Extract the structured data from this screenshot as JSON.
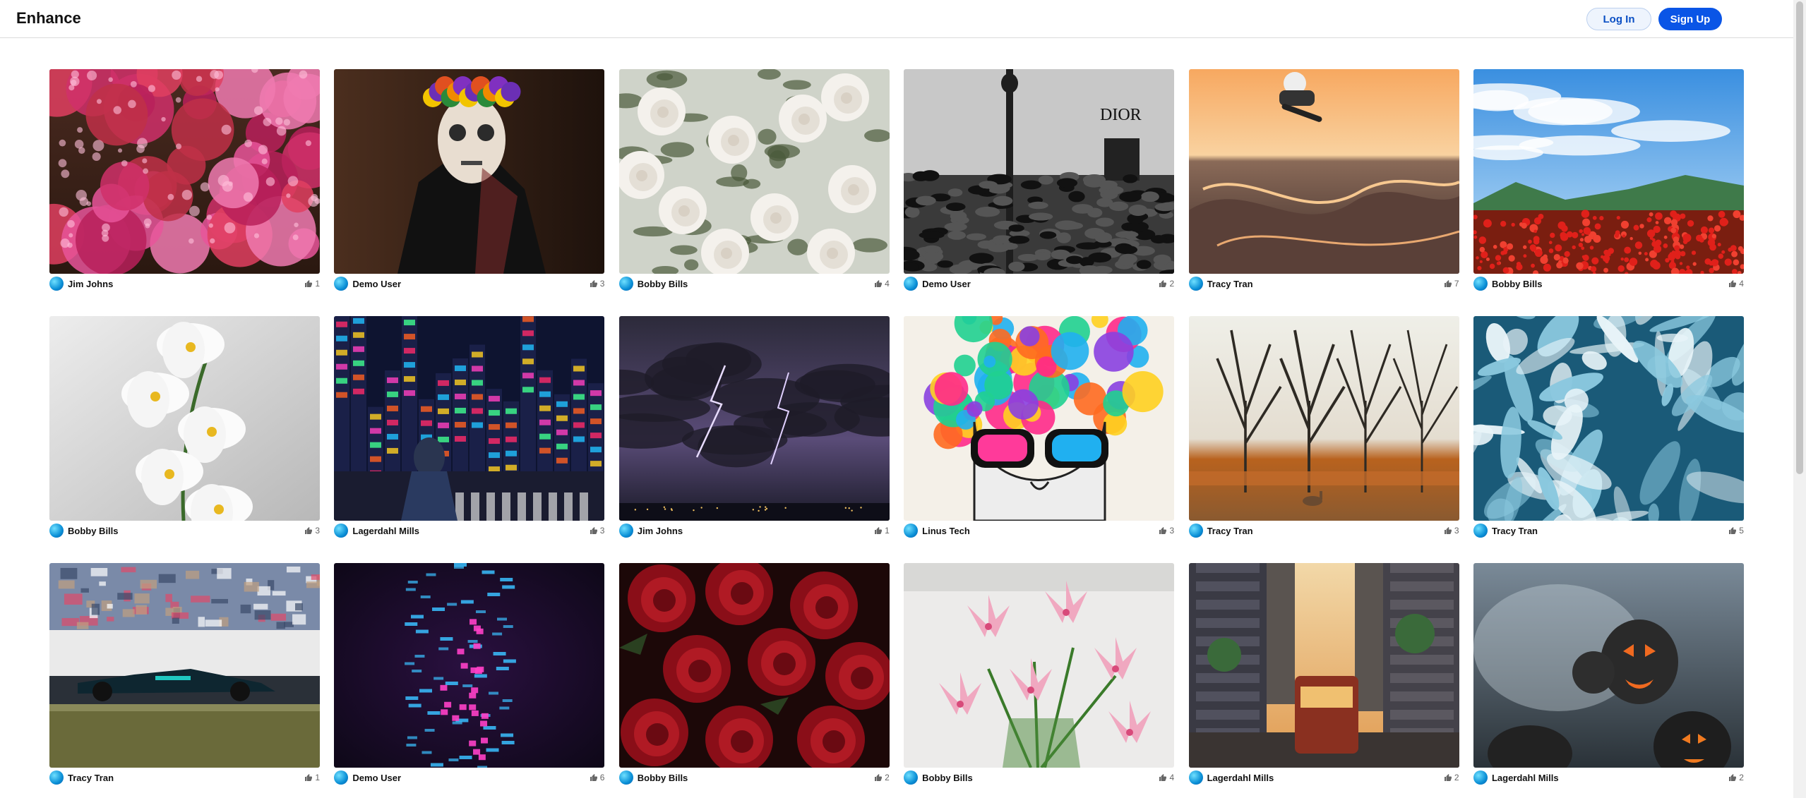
{
  "header": {
    "logo": "Enhance",
    "login_label": "Log In",
    "signup_label": "Sign Up"
  },
  "colors": {
    "accent": "#0a55e6",
    "login_bg": "#eef4fd",
    "avatar": "#0a8fd6"
  },
  "posts": [
    {
      "author": "Jim Johns",
      "likes": "1",
      "scene": "pink-chrysanthemums"
    },
    {
      "author": "Demo User",
      "likes": "3",
      "scene": "calavera-portrait"
    },
    {
      "author": "Bobby Bills",
      "likes": "4",
      "scene": "white-roses"
    },
    {
      "author": "Demo User",
      "likes": "2",
      "scene": "dior-crowd-umbrellas"
    },
    {
      "author": "Tracy Tran",
      "likes": "7",
      "scene": "skatepark-sunset"
    },
    {
      "author": "Bobby Bills",
      "likes": "4",
      "scene": "poppy-field"
    },
    {
      "author": "Bobby Bills",
      "likes": "3",
      "scene": "white-orchid"
    },
    {
      "author": "Lagerdahl Mills",
      "likes": "3",
      "scene": "neon-city-night"
    },
    {
      "author": "Jim Johns",
      "likes": "1",
      "scene": "lightning-storm"
    },
    {
      "author": "Linus Tech",
      "likes": "3",
      "scene": "colorful-face-art"
    },
    {
      "author": "Tracy Tran",
      "likes": "3",
      "scene": "autumn-trees-deer"
    },
    {
      "author": "Tracy Tran",
      "likes": "5",
      "scene": "ocean-foam"
    },
    {
      "author": "Tracy Tran",
      "likes": "1",
      "scene": "formula-one-car"
    },
    {
      "author": "Demo User",
      "likes": "6",
      "scene": "neon-helix"
    },
    {
      "author": "Bobby Bills",
      "likes": "2",
      "scene": "red-roses"
    },
    {
      "author": "Bobby Bills",
      "likes": "4",
      "scene": "pink-lilies"
    },
    {
      "author": "Lagerdahl Mills",
      "likes": "2",
      "scene": "cable-car-street"
    },
    {
      "author": "Lagerdahl Mills",
      "likes": "2",
      "scene": "jack-o-lanterns"
    }
  ]
}
